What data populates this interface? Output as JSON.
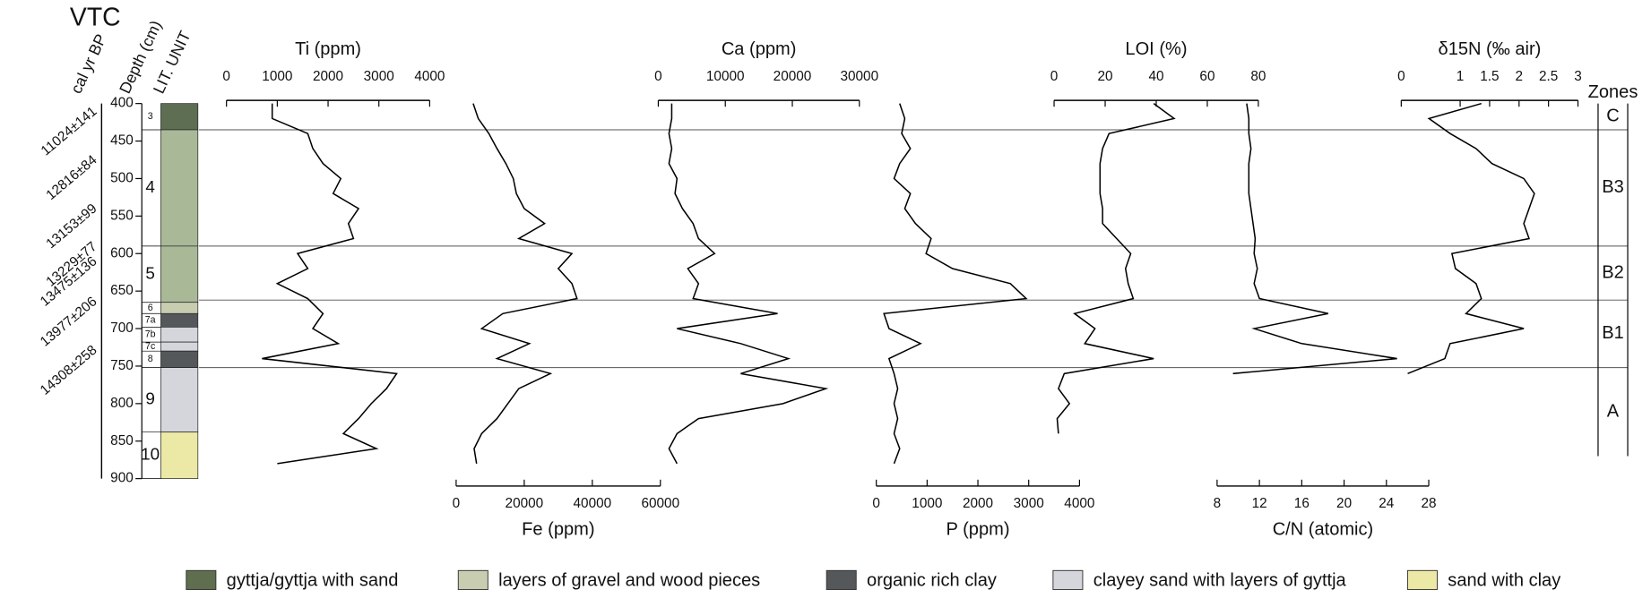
{
  "chart_data": {
    "type": "profile",
    "title": "VTC",
    "age_label": "cal yr BP",
    "depth_label": "Depth (cm)",
    "unit_label": "LIT. UNIT",
    "zones_label": "Zones",
    "ylim": [
      400,
      900
    ],
    "yticks": [
      400,
      450,
      500,
      550,
      600,
      650,
      700,
      750,
      800,
      850,
      900
    ],
    "ages": [
      "11024±141",
      "12816±84",
      "13153±99",
      "13229±77",
      "13475±136",
      "13977±206",
      "14308±258"
    ],
    "units": [
      {
        "label": "3",
        "top": 400,
        "bottom": 435,
        "color": "#5e6e52"
      },
      {
        "label": "4",
        "top": 435,
        "bottom": 590,
        "color": "#a9b998"
      },
      {
        "label": "5",
        "top": 590,
        "bottom": 665,
        "color": "#a9b998"
      },
      {
        "label": "6",
        "top": 665,
        "bottom": 680,
        "color": "#c8ccb0"
      },
      {
        "label": "7a",
        "top": 680,
        "bottom": 698,
        "color": "#55585a"
      },
      {
        "label": "7b",
        "top": 698,
        "bottom": 718,
        "color": "#d5d6dc"
      },
      {
        "label": "7c",
        "top": 718,
        "bottom": 730,
        "color": "#d5d6dc"
      },
      {
        "label": "8",
        "top": 730,
        "bottom": 752,
        "color": "#55585a"
      },
      {
        "label": "9",
        "top": 752,
        "bottom": 838,
        "color": "#d5d6dc"
      },
      {
        "label": "10",
        "top": 838,
        "bottom": 900,
        "color": "#ece9a6"
      }
    ],
    "zones": {
      "labels": [
        "C",
        "B3",
        "B2",
        "B1",
        "A"
      ],
      "boundaries": [
        400,
        435,
        590,
        662,
        752,
        870
      ]
    },
    "depths": [
      400,
      420,
      440,
      460,
      480,
      500,
      520,
      540,
      560,
      580,
      600,
      620,
      640,
      660,
      680,
      700,
      720,
      740,
      760,
      780,
      800,
      820,
      840,
      860,
      880
    ],
    "series": [
      {
        "name": "Ti (ppm)",
        "color": "#000000",
        "side": "top",
        "xlim": [
          0,
          4000
        ],
        "xticks": [
          0,
          1000,
          2000,
          3000,
          4000
        ],
        "values": [
          900,
          900,
          1600,
          1700,
          1900,
          2250,
          2100,
          2600,
          2400,
          2500,
          1400,
          1600,
          1000,
          1600,
          1900,
          1700,
          2200,
          700,
          3350,
          3150,
          2850,
          2600,
          2300,
          2950,
          1000
        ]
      },
      {
        "name": "Fe (ppm)",
        "color": "#000000",
        "side": "bottom",
        "xlim": [
          0,
          60000
        ],
        "xticks": [
          0,
          20000,
          40000,
          60000
        ],
        "values": [
          5000,
          6500,
          9600,
          12000,
          14600,
          16800,
          17700,
          20000,
          26000,
          18400,
          34000,
          30000,
          34000,
          35500,
          13700,
          7500,
          21500,
          12000,
          27700,
          18400,
          15200,
          12000,
          7500,
          5300,
          6000
        ]
      },
      {
        "name": "Ca (ppm)",
        "color": "#000000",
        "side": "top",
        "xlim": [
          0,
          30000
        ],
        "xticks": [
          0,
          10000,
          20000,
          30000
        ],
        "values": [
          2000,
          2000,
          1600,
          2000,
          1600,
          2800,
          2500,
          3600,
          5200,
          6000,
          8400,
          4400,
          6000,
          5200,
          17800,
          2800,
          12300,
          19400,
          12300,
          25000,
          18600,
          6000,
          2800,
          1600,
          2800
        ]
      },
      {
        "name": "P (ppm)",
        "color": "#000000",
        "side": "bottom",
        "xlim": [
          0,
          4000
        ],
        "xticks": [
          0,
          1000,
          2000,
          3000,
          4000
        ],
        "values": [
          460,
          560,
          500,
          670,
          460,
          350,
          670,
          560,
          770,
          1080,
          980,
          1500,
          2640,
          2950,
          150,
          250,
          870,
          250,
          350,
          420,
          350,
          420,
          350,
          460,
          350
        ]
      },
      {
        "name": "LOI (%)",
        "color": "#000000",
        "side": "top",
        "xlim": [
          0,
          80
        ],
        "xticks": [
          0,
          20,
          40,
          60,
          80
        ],
        "values": [
          39,
          47,
          21.5,
          19,
          18,
          18,
          18,
          19,
          19,
          24.5,
          30,
          28,
          29,
          31,
          8,
          16,
          12,
          39,
          4,
          1.7,
          6,
          1.2,
          1.7,
          null,
          null
        ]
      },
      {
        "name": "C/N (atomic)",
        "color": "#000000",
        "side": "bottom",
        "xlim": [
          8,
          28
        ],
        "xticks": [
          8,
          12,
          16,
          20,
          24,
          28
        ],
        "values": [
          10.8,
          11,
          11,
          11.2,
          11,
          11,
          11,
          11.2,
          11.4,
          11.6,
          11.5,
          11.8,
          11.5,
          12,
          18.5,
          11.5,
          16,
          25,
          9.5,
          null,
          null,
          null,
          null,
          null,
          null
        ]
      },
      {
        "name": "δ15N (‰ air)",
        "color": "#000000",
        "side": "top",
        "xlim": [
          0,
          3
        ],
        "xticks": [
          0,
          1,
          1.5,
          2,
          2.5,
          3
        ],
        "values": [
          1.36,
          0.47,
          0.83,
          1.27,
          1.54,
          2.08,
          2.26,
          2.17,
          2.08,
          2.17,
          0.86,
          0.92,
          1.27,
          1.36,
          1.1,
          2.08,
          0.83,
          0.74,
          0.11,
          null,
          null,
          null,
          null,
          null,
          null
        ]
      }
    ],
    "legend": [
      {
        "label": "gyttja/gyttja with sand",
        "color": "#5e6e4e"
      },
      {
        "label": "layers of gravel and wood pieces",
        "color": "#c8ccb0"
      },
      {
        "label": "organic rich clay",
        "color": "#55585a"
      },
      {
        "label": "clayey sand with layers of gyttja",
        "color": "#d5d6dc"
      },
      {
        "label": "sand with clay",
        "color": "#ece9a6"
      }
    ]
  }
}
